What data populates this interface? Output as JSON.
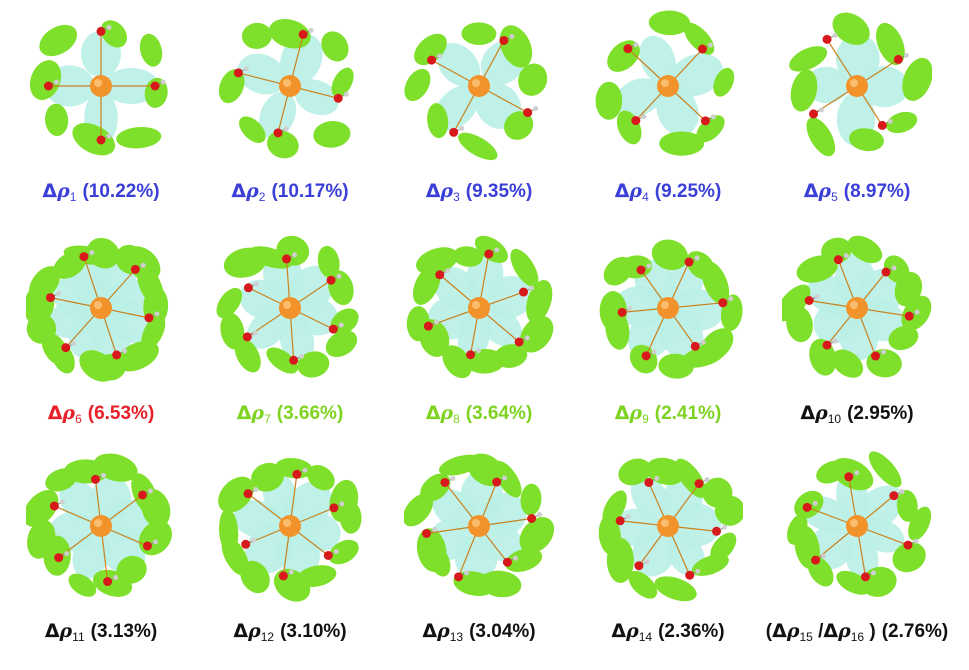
{
  "colors": {
    "blue": "#3a3fd8",
    "red": "#e8202a",
    "green": "#7ed321",
    "black": "#111111",
    "lobe_green": "#7ee02a",
    "lobe_cyan": "#b9f0e6",
    "metal_orange": "#f2922a",
    "oxygen_red": "#d8191c",
    "hydrogen_grey": "#cfcfcf"
  },
  "panels": [
    {
      "id": 1,
      "sub": "1",
      "pct": "(10.22%)",
      "color": "blue"
    },
    {
      "id": 2,
      "sub": "2",
      "pct": "(10.17%)",
      "color": "blue"
    },
    {
      "id": 3,
      "sub": "3",
      "pct": "(9.35%)",
      "color": "blue"
    },
    {
      "id": 4,
      "sub": "4",
      "pct": "(9.25%)",
      "color": "blue"
    },
    {
      "id": 5,
      "sub": "5",
      "pct": "(8.97%)",
      "color": "blue"
    },
    {
      "id": 6,
      "sub": "6",
      "pct": "(6.53%)",
      "color": "red"
    },
    {
      "id": 7,
      "sub": "7",
      "pct": "(3.66%)",
      "color": "green"
    },
    {
      "id": 8,
      "sub": "8",
      "pct": "(3.64%)",
      "color": "green"
    },
    {
      "id": 9,
      "sub": "9",
      "pct": "(2.41%)",
      "color": "green"
    },
    {
      "id": 10,
      "sub": "10",
      "pct": "(2.95%)",
      "color": "black"
    },
    {
      "id": 11,
      "sub": "11",
      "pct": "(3.13%)",
      "color": "black"
    },
    {
      "id": 12,
      "sub": "12",
      "pct": "(3.10%)",
      "color": "black"
    },
    {
      "id": 13,
      "sub": "13",
      "pct": "(3.04%)",
      "color": "black"
    },
    {
      "id": 14,
      "sub": "14",
      "pct": "(2.36%)",
      "color": "black"
    },
    {
      "id": 15,
      "sub": "15",
      "sub2": "16",
      "pct": "(2.76%)",
      "color": "black",
      "combined": true
    }
  ],
  "symbols": {
    "delta": "Δ",
    "rho": "ρ",
    "slash": "/",
    "open": "(",
    "close": ")"
  }
}
